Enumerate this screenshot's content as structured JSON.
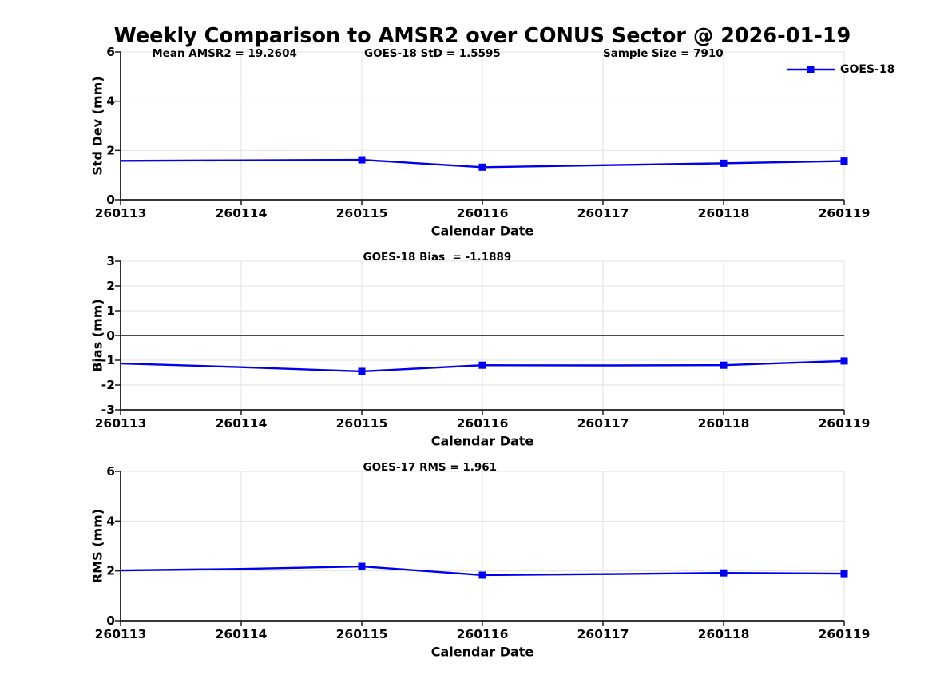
{
  "figure": {
    "title": "Weekly Comparison to AMSR2 over CONUS Sector @ 2026-01-19"
  },
  "colors": {
    "series": "#0000ee",
    "grid": "#e2e2e2",
    "axis": "#1a1a1a",
    "zero_line": "#4a4a4a",
    "text": "#000000",
    "background": "#ffffff"
  },
  "legend": {
    "label": "GOES-18",
    "position": "top-right"
  },
  "chart_data": [
    {
      "type": "line",
      "name": "std-dev",
      "ylabel": "Std Dev (mm)",
      "xlabel": "Calendar Date",
      "categories": [
        "260113",
        "260114",
        "260115",
        "260116",
        "260117",
        "260118",
        "260119"
      ],
      "ylim": [
        0,
        6
      ],
      "yticks": [
        0,
        2,
        4,
        6
      ],
      "grid": true,
      "zero_line": false,
      "show_legend": true,
      "annotations": [
        {
          "text": "Mean AMSR2 = 19.2604",
          "xi": 0.26
        },
        {
          "text": "GOES-18 StD = 1.5595",
          "xi": 2.02
        },
        {
          "text": "Sample Size = 7910",
          "xi": 4.0
        }
      ],
      "series": [
        {
          "name": "GOES-18",
          "values": [
            1.58,
            1.6,
            1.62,
            1.32,
            1.4,
            1.48,
            1.57
          ],
          "marker": "square",
          "marker_indices": [
            2,
            3,
            5,
            6
          ]
        }
      ]
    },
    {
      "type": "line",
      "name": "bias",
      "ylabel": "Bias (mm)",
      "xlabel": "Calendar Date",
      "categories": [
        "260113",
        "260114",
        "260115",
        "260116",
        "260117",
        "260118",
        "260119"
      ],
      "ylim": [
        -3,
        3
      ],
      "yticks": [
        -3,
        -2,
        -1,
        0,
        1,
        2,
        3
      ],
      "grid": true,
      "zero_line": true,
      "show_legend": false,
      "annotations": [
        {
          "text": "GOES-18 Bias  = -1.1889",
          "xi": 2.01
        }
      ],
      "series": [
        {
          "name": "GOES-18",
          "values": [
            -1.13,
            -1.28,
            -1.45,
            -1.2,
            -1.21,
            -1.2,
            -1.03
          ],
          "marker": "square",
          "marker_indices": [
            2,
            3,
            5,
            6
          ]
        }
      ]
    },
    {
      "type": "line",
      "name": "rms",
      "ylabel": "RMS (mm)",
      "xlabel": "Calendar Date",
      "categories": [
        "260113",
        "260114",
        "260115",
        "260116",
        "260117",
        "260118",
        "260119"
      ],
      "ylim": [
        0,
        6
      ],
      "yticks": [
        0,
        2,
        4,
        6
      ],
      "grid": true,
      "zero_line": false,
      "show_legend": false,
      "annotations": [
        {
          "text": "GOES-17 RMS = 1.961",
          "xi": 2.01
        }
      ],
      "series": [
        {
          "name": "GOES-17",
          "values": [
            2.02,
            2.08,
            2.18,
            1.83,
            1.87,
            1.92,
            1.89
          ],
          "marker": "square",
          "marker_indices": [
            2,
            3,
            5,
            6
          ]
        }
      ]
    }
  ]
}
